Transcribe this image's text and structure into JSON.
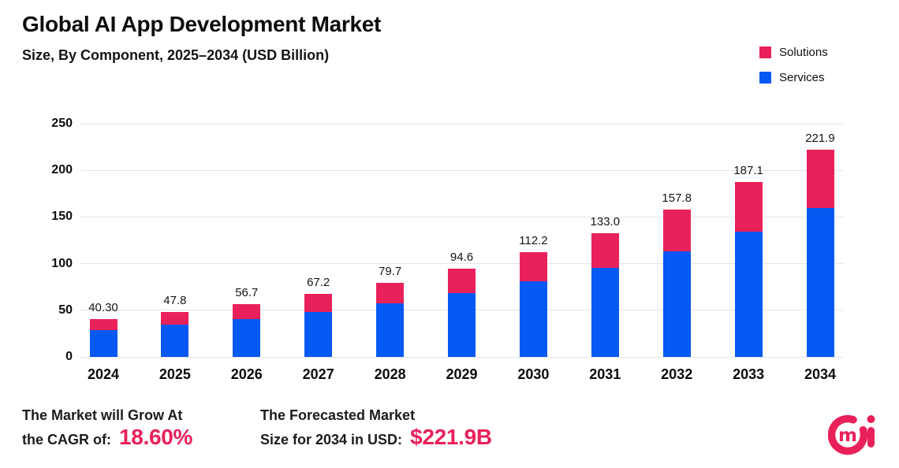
{
  "colors": {
    "accent_pink": "#E9215A",
    "series_blue": "#0659F2",
    "grid": "#E4E4E4",
    "text_dark": "#0C0C0C"
  },
  "chart_data": {
    "type": "bar",
    "stacked": true,
    "title": "Global AI App Development Market",
    "subtitle": "Size, By Component, 2025–2034 (USD Billion)",
    "categories": [
      "2024",
      "2025",
      "2026",
      "2027",
      "2028",
      "2029",
      "2030",
      "2031",
      "2032",
      "2033",
      "2034"
    ],
    "series": [
      {
        "name": "Services",
        "color": "#0659F2",
        "values": [
          29.0,
          34.4,
          40.8,
          48.4,
          57.4,
          68.1,
          80.8,
          95.8,
          113.6,
          134.7,
          159.8
        ]
      },
      {
        "name": "Solutions",
        "color": "#E9215A",
        "values": [
          11.3,
          13.4,
          15.9,
          18.8,
          22.3,
          26.5,
          31.4,
          37.2,
          44.2,
          52.4,
          62.1
        ]
      }
    ],
    "totals": [
      40.3,
      47.8,
      56.7,
      67.2,
      79.7,
      94.6,
      112.2,
      133.0,
      157.8,
      187.1,
      221.9
    ],
    "total_labels": [
      "40.30",
      "47.8",
      "56.7",
      "67.2",
      "79.7",
      "94.6",
      "112.2",
      "133.0",
      "157.8",
      "187.1",
      "221.9"
    ],
    "xlabel": "",
    "ylabel": "",
    "ylim": [
      0,
      250
    ],
    "yticks": [
      0,
      50,
      100,
      150,
      200,
      250
    ],
    "grid": true,
    "legend": {
      "position": "top-right",
      "entries": [
        {
          "label": "Solutions",
          "color": "#E9215A"
        },
        {
          "label": "Services",
          "color": "#0659F2"
        }
      ]
    }
  },
  "footer": {
    "cagr": {
      "line1": "The Market will Grow At",
      "line2": "the CAGR of:",
      "value": "18.60%"
    },
    "forecast": {
      "line1": "The Forecasted Market",
      "line2": "Size for 2034 in USD:",
      "value": "$221.9B"
    }
  },
  "brand": {
    "logo_name": "cmi",
    "logo_color": "#E9215A"
  }
}
